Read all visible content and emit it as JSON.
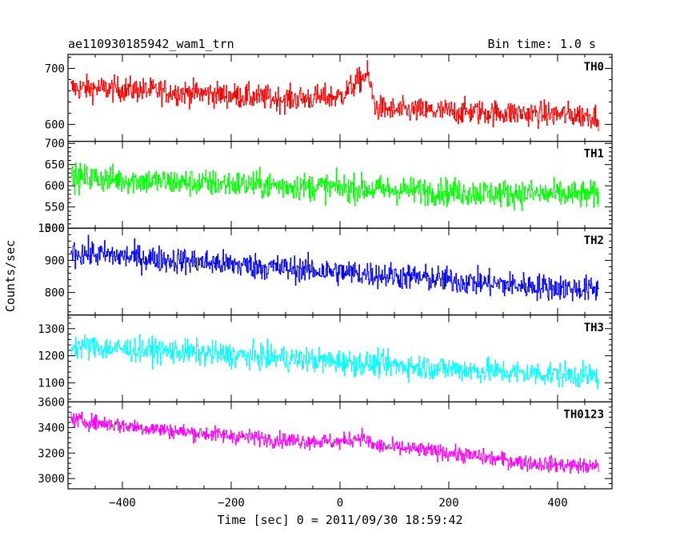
{
  "header": {
    "title": "ae110930185942_wam1_trn",
    "bin_time": "Bin time: 1.0 s"
  },
  "axes": {
    "xlabel": "Time [sec] 0 = 2011/09/30 18:59:42",
    "ylabel": "Counts/sec"
  },
  "chart_data": {
    "type": "line",
    "title": "ae110930185942_wam1_trn",
    "subtitle": "Bin time: 1.0 s",
    "xlabel": "Time [sec] 0 = 2011/09/30 18:59:42",
    "ylabel": "Counts/sec",
    "xlim": [
      -500,
      500
    ],
    "x_start": -495,
    "x_end": 475,
    "x_step": 1,
    "x_ticks": [
      -400,
      -200,
      0,
      200,
      400
    ],
    "panels": [
      {
        "name": "TH0",
        "color": "#ff0000",
        "ylim": [
          570,
          725
        ],
        "y_ticks": [
          600,
          700
        ],
        "trend": [
          [
            -495,
            665
          ],
          [
            -400,
            663
          ],
          [
            -250,
            655
          ],
          [
            -100,
            645
          ],
          [
            0,
            650
          ],
          [
            30,
            675
          ],
          [
            50,
            690
          ],
          [
            65,
            630
          ],
          [
            100,
            625
          ],
          [
            250,
            622
          ],
          [
            400,
            618
          ],
          [
            475,
            615
          ]
        ],
        "noise": 22
      },
      {
        "name": "TH1",
        "color": "#00ff00",
        "ylim": [
          500,
          705
        ],
        "y_ticks": [
          500,
          550,
          600,
          650,
          700
        ],
        "trend": [
          [
            -495,
            620
          ],
          [
            -300,
            608
          ],
          [
            -100,
            600
          ],
          [
            100,
            590
          ],
          [
            300,
            582
          ],
          [
            475,
            578
          ]
        ],
        "noise": 32
      },
      {
        "name": "TH2",
        "color": "#0000ff",
        "ylim": [
          730,
          1000
        ],
        "y_ticks": [
          800,
          900,
          1000
        ],
        "trend": [
          [
            -495,
            925
          ],
          [
            -300,
            900
          ],
          [
            -100,
            875
          ],
          [
            100,
            852
          ],
          [
            300,
            825
          ],
          [
            475,
            808
          ]
        ],
        "noise": 40
      },
      {
        "name": "TH3",
        "color": "#00ffff",
        "ylim": [
          1030,
          1350
        ],
        "y_ticks": [
          1100,
          1200,
          1300
        ],
        "trend": [
          [
            -495,
            1235
          ],
          [
            -300,
            1215
          ],
          [
            -100,
            1190
          ],
          [
            100,
            1165
          ],
          [
            300,
            1140
          ],
          [
            475,
            1125
          ]
        ],
        "noise": 45
      },
      {
        "name": "TH0123",
        "color": "#ff00ff",
        "ylim": [
          2920,
          3600
        ],
        "y_ticks": [
          3000,
          3200,
          3400,
          3600
        ],
        "trend": [
          [
            -495,
            3460
          ],
          [
            -300,
            3370
          ],
          [
            -100,
            3300
          ],
          [
            0,
            3285
          ],
          [
            40,
            3330
          ],
          [
            60,
            3260
          ],
          [
            200,
            3200
          ],
          [
            350,
            3120
          ],
          [
            475,
            3090
          ]
        ],
        "noise": 60
      }
    ]
  }
}
